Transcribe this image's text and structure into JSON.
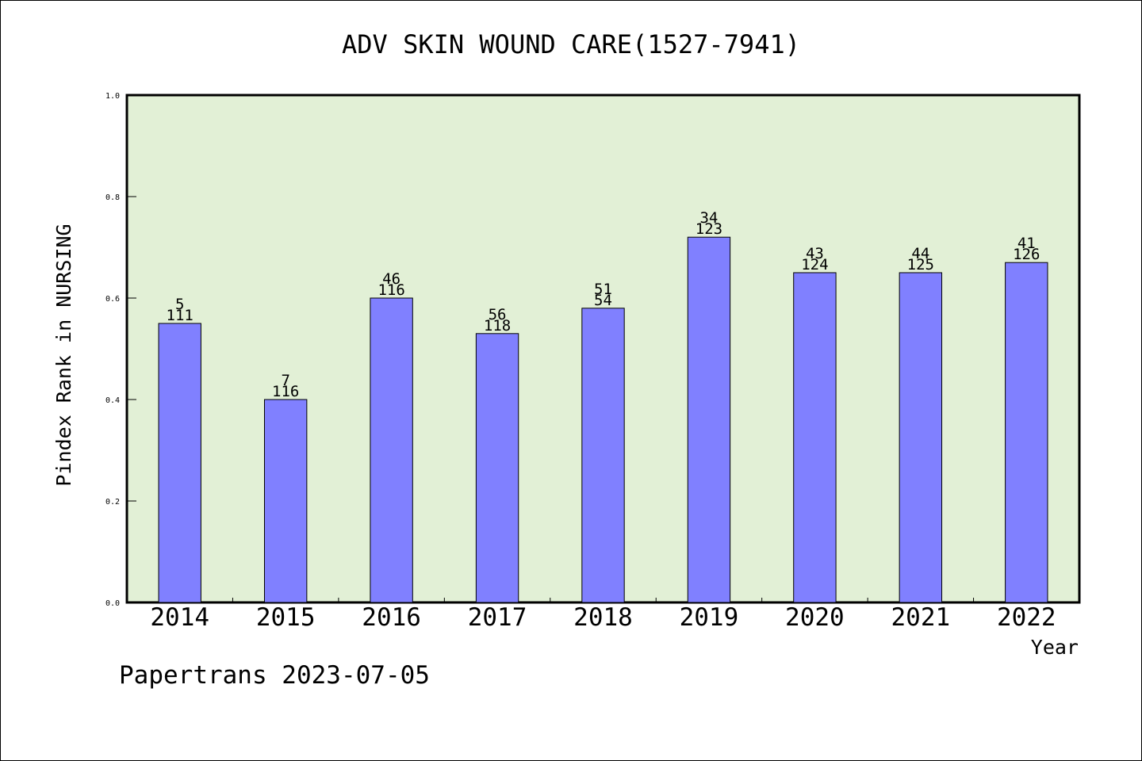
{
  "footer": "Papertrans 2023-07-05",
  "colors": {
    "plot_background": "#e2f0d6",
    "bar": "#8080ff",
    "bar_outline": "#000000",
    "axis": "#000000"
  },
  "chart_data": {
    "type": "bar",
    "title": "ADV SKIN WOUND CARE(1527-7941)",
    "xlabel": "Year",
    "ylabel": "Pindex Rank in NURSING",
    "ylim": [
      0,
      1.0
    ],
    "yticks": [
      "0.0",
      "0.2",
      "0.4",
      "0.6",
      "0.8",
      "1.0"
    ],
    "grid": false,
    "categories": [
      "2014",
      "2015",
      "2016",
      "2017",
      "2018",
      "2019",
      "2020",
      "2021",
      "2022"
    ],
    "values": [
      0.55,
      0.4,
      0.6,
      0.53,
      0.58,
      0.72,
      0.65,
      0.65,
      0.67
    ],
    "label_top": [
      "5",
      "7",
      "46",
      "56",
      "51",
      "34",
      "43",
      "44",
      "41"
    ],
    "label_bottom": [
      "111",
      "116",
      "116",
      "118",
      "54",
      "123",
      "124",
      "125",
      "126"
    ]
  }
}
